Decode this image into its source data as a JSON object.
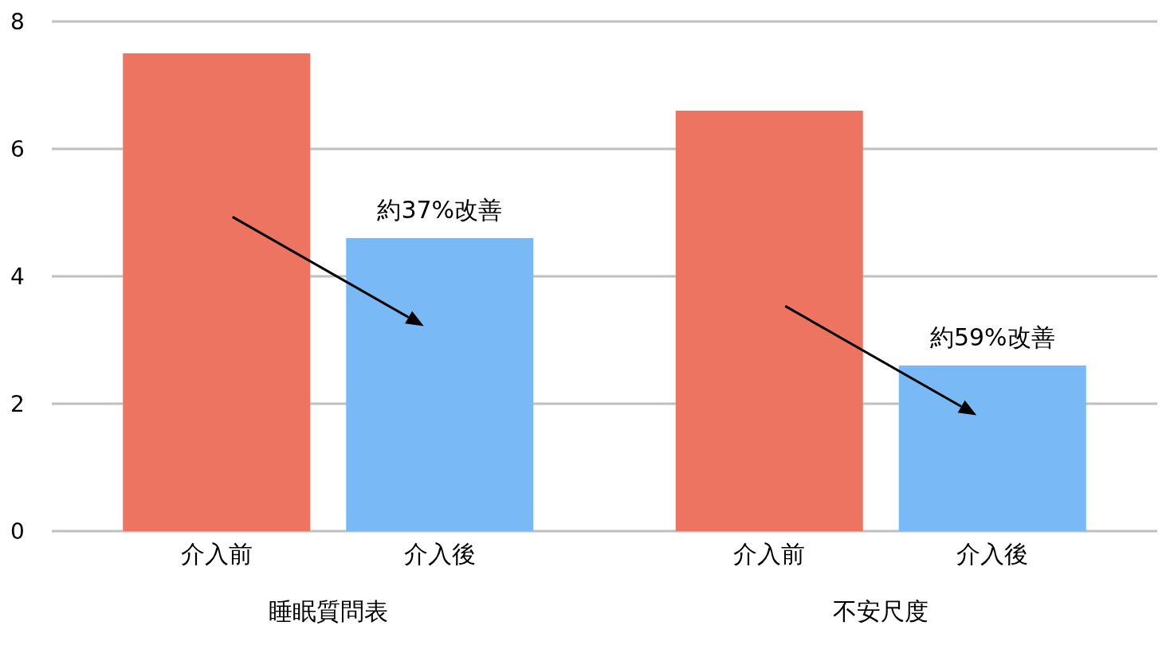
{
  "chart_data": {
    "type": "bar",
    "categories": [
      "睡眠質問表",
      "不安尺度"
    ],
    "series": [
      {
        "name": "介入前",
        "color": "#ee7462",
        "values": [
          7.5,
          6.6
        ]
      },
      {
        "name": "介入後",
        "color": "#79b9f5",
        "values": [
          4.6,
          2.6
        ]
      }
    ],
    "ylim": [
      0,
      8
    ],
    "yticks": [
      0,
      2,
      4,
      6,
      8
    ],
    "grid": "y",
    "annotations": [
      "約37%改善",
      "約59%改善"
    ]
  }
}
